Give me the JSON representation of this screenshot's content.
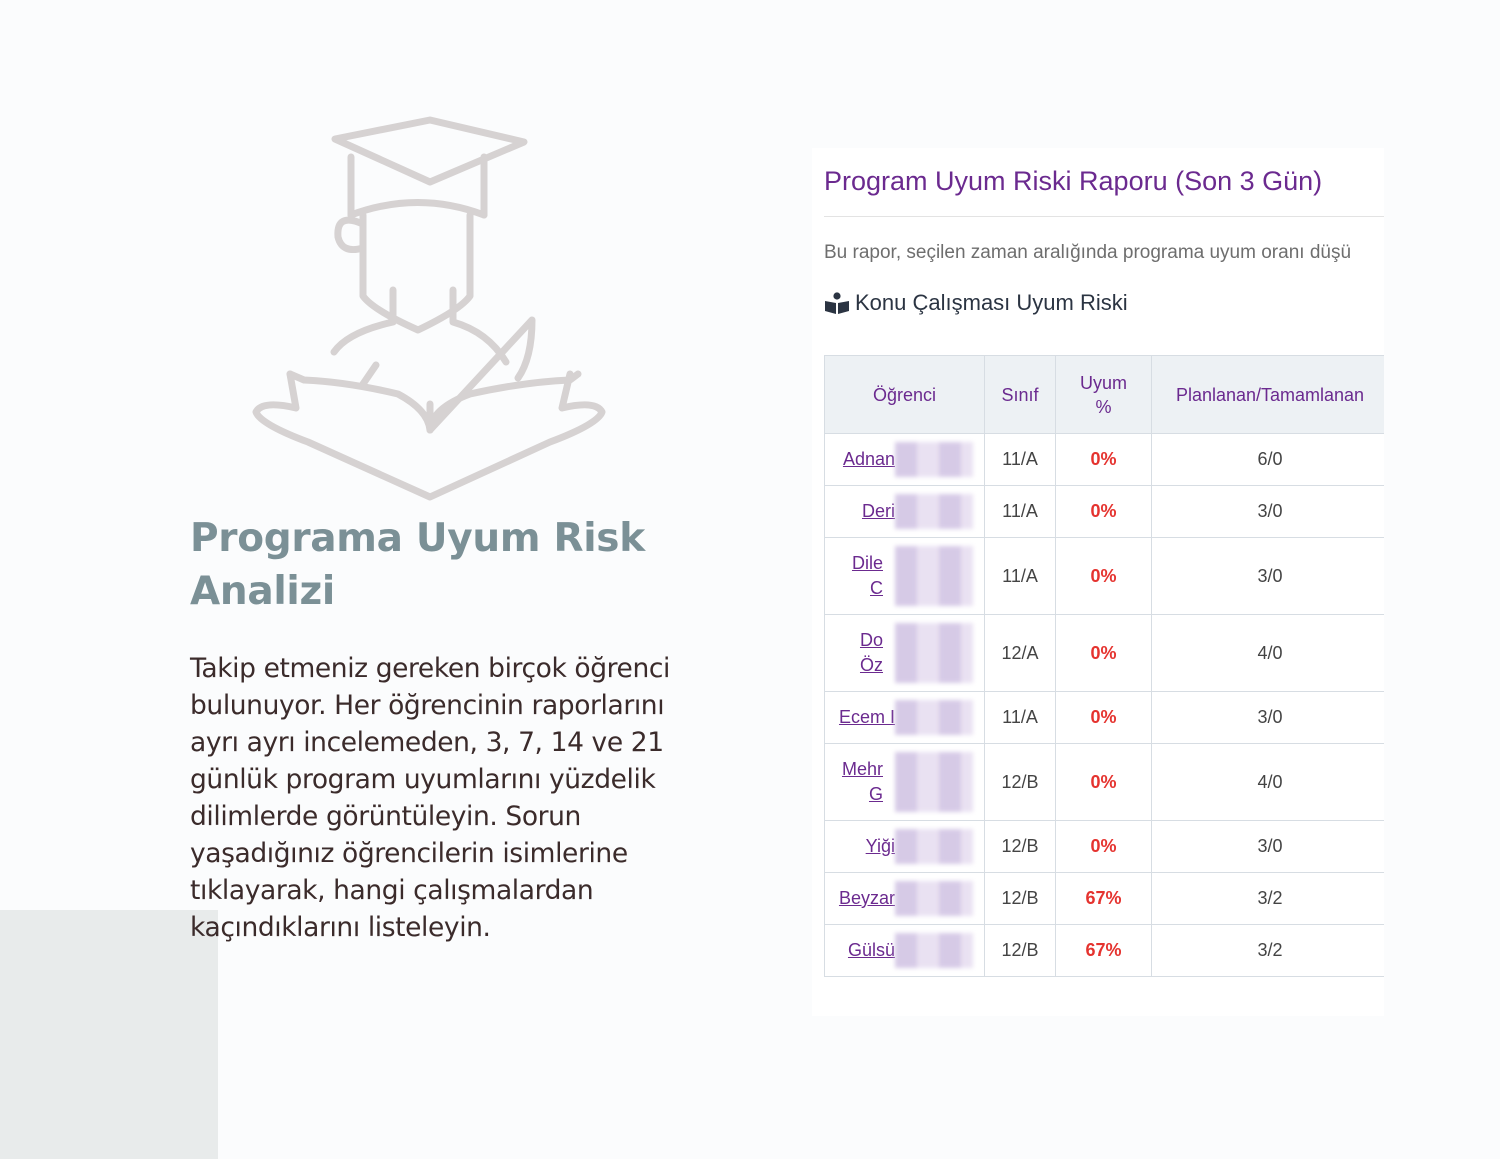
{
  "feature": {
    "title": "Programa Uyum Risk Analizi",
    "description": "Takip etmeniz gereken birçok öğrenci bulunuyor. Her öğrencinin raporlarını ayrı ayrı incelemeden, 3, 7, 14 ve 21 günlük program uyumlarını yüzdelik dilimlerde görüntüleyin. Sorun yaşadığınız öğrencilerin isimlerine tıklayarak, hangi çalışmalardan kaçındıklarını listeleyin."
  },
  "hero_icon": "graduate-reading-book-icon",
  "report": {
    "title": "Program Uyum Riski Raporu (Son 3 Gün)",
    "intro": "Bu rapor, seçilen zaman aralığında programa uyum oranı düşü",
    "section_icon": "reader-book-icon",
    "section_title": "Konu Çalışması Uyum Riski",
    "columns": [
      "Öğrenci",
      "Sınıf",
      "Uyum %",
      "Planlanan/Tamamlanan"
    ],
    "rows": [
      {
        "name": "Adnan",
        "class": "11/A",
        "pct": "0%",
        "plan": "6/0"
      },
      {
        "name": "Deri",
        "class": "11/A",
        "pct": "0%",
        "plan": "3/0"
      },
      {
        "name": "Dile C",
        "class": "11/A",
        "pct": "0%",
        "plan": "3/0"
      },
      {
        "name": "Do Öz",
        "class": "12/A",
        "pct": "0%",
        "plan": "4/0"
      },
      {
        "name": "Ecem I",
        "class": "11/A",
        "pct": "0%",
        "plan": "3/0"
      },
      {
        "name": "Mehr G",
        "class": "12/B",
        "pct": "0%",
        "plan": "4/0"
      },
      {
        "name": "Yiği",
        "class": "12/B",
        "pct": "0%",
        "plan": "3/0"
      },
      {
        "name": "Beyzar",
        "class": "12/B",
        "pct": "67%",
        "plan": "3/2"
      },
      {
        "name": "Gülsü",
        "class": "12/B",
        "pct": "67%",
        "plan": "3/2"
      }
    ]
  },
  "colors": {
    "title_accent": "#7b9096",
    "report_purple": "#6b2a8f",
    "risk_red": "#e5332f",
    "icon_gray": "#d6d2d2"
  }
}
